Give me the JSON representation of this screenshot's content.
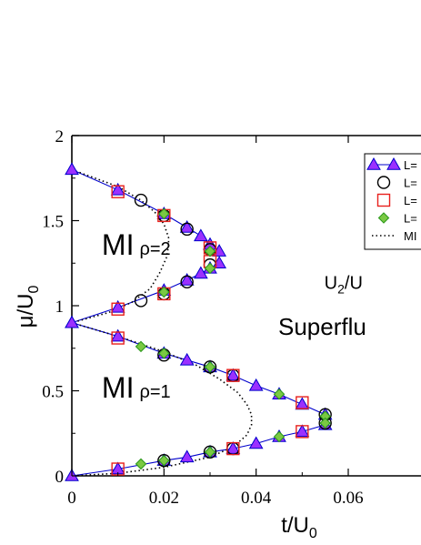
{
  "chart_data": {
    "type": "scatter",
    "title": "",
    "xlabel": {
      "base": "t/U",
      "sub": "0"
    },
    "ylabel": {
      "base": "μ/U",
      "sub": "0"
    },
    "xlim": [
      0,
      0.06
    ],
    "ylim": [
      0,
      2
    ],
    "x_ticks": [
      {
        "value": 0,
        "label": "0"
      },
      {
        "value": 0.02,
        "label": "0.02"
      },
      {
        "value": 0.04,
        "label": "0.04"
      },
      {
        "value": 0.06,
        "label": "0.06"
      }
    ],
    "y_ticks": [
      {
        "value": 0,
        "label": "0"
      },
      {
        "value": 0.5,
        "label": "0.5"
      },
      {
        "value": 1,
        "label": "1"
      },
      {
        "value": 1.5,
        "label": "1.5"
      },
      {
        "value": 2,
        "label": "2"
      }
    ],
    "legend_position": "top-right",
    "series": [
      {
        "name": "L=",
        "marker": "triangle",
        "color": "#9b30ff",
        "edge": "#0000cc",
        "line": true,
        "segments": [
          [
            [
              0,
              1.8
            ],
            [
              0.01,
              1.68
            ],
            [
              0.02,
              1.54
            ],
            [
              0.025,
              1.46
            ],
            [
              0.028,
              1.41
            ],
            [
              0.03,
              1.36
            ],
            [
              0.032,
              1.32
            ]
          ],
          [
            [
              0.032,
              1.25
            ],
            [
              0.03,
              1.22
            ],
            [
              0.028,
              1.19
            ],
            [
              0.025,
              1.15
            ],
            [
              0.02,
              1.09
            ],
            [
              0.01,
              0.99
            ],
            [
              0,
              0.9
            ]
          ],
          [
            [
              0,
              0.9
            ],
            [
              0.01,
              0.82
            ],
            [
              0.02,
              0.72
            ],
            [
              0.025,
              0.68
            ],
            [
              0.03,
              0.64
            ],
            [
              0.035,
              0.59
            ],
            [
              0.04,
              0.53
            ],
            [
              0.045,
              0.48
            ],
            [
              0.05,
              0.42
            ],
            [
              0.055,
              0.36
            ]
          ],
          [
            [
              0.055,
              0.3
            ],
            [
              0.05,
              0.26
            ],
            [
              0.045,
              0.23
            ],
            [
              0.04,
              0.19
            ],
            [
              0.035,
              0.16
            ],
            [
              0.03,
              0.14
            ],
            [
              0.025,
              0.11
            ],
            [
              0.02,
              0.09
            ],
            [
              0.01,
              0.04
            ],
            [
              0,
              0
            ]
          ]
        ]
      },
      {
        "name": "L=",
        "marker": "circle",
        "color": "#000000",
        "points": [
          [
            0.015,
            1.62
          ],
          [
            0.02,
            1.53
          ],
          [
            0.025,
            1.45
          ],
          [
            0.03,
            1.33
          ],
          [
            0.015,
            1.03
          ],
          [
            0.02,
            1.07
          ],
          [
            0.025,
            1.14
          ],
          [
            0.03,
            1.24
          ],
          [
            0.02,
            0.71
          ],
          [
            0.03,
            0.64
          ],
          [
            0.035,
            0.59
          ],
          [
            0.055,
            0.36
          ],
          [
            0.055,
            0.31
          ],
          [
            0.035,
            0.16
          ],
          [
            0.03,
            0.14
          ],
          [
            0.02,
            0.09
          ]
        ]
      },
      {
        "name": "L=",
        "marker": "square",
        "color": "#e8201c",
        "points": [
          [
            0.01,
            1.67
          ],
          [
            0.02,
            1.53
          ],
          [
            0.03,
            1.34
          ],
          [
            0.03,
            1.26
          ],
          [
            0.02,
            1.07
          ],
          [
            0.01,
            0.98
          ],
          [
            0.01,
            0.81
          ],
          [
            0.035,
            0.59
          ],
          [
            0.05,
            0.43
          ],
          [
            0.05,
            0.26
          ],
          [
            0.035,
            0.16
          ],
          [
            0.01,
            0.04
          ]
        ]
      },
      {
        "name": "L=",
        "marker": "diamond",
        "color": "#2e9a1e",
        "points": [
          [
            0.02,
            1.54
          ],
          [
            0.03,
            1.32
          ],
          [
            0.03,
            1.22
          ],
          [
            0.02,
            1.08
          ],
          [
            0.015,
            0.76
          ],
          [
            0.02,
            0.72
          ],
          [
            0.03,
            0.64
          ],
          [
            0.045,
            0.48
          ],
          [
            0.055,
            0.35
          ],
          [
            0.055,
            0.31
          ],
          [
            0.045,
            0.23
          ],
          [
            0.03,
            0.14
          ],
          [
            0.02,
            0.09
          ],
          [
            0.015,
            0.07
          ]
        ]
      },
      {
        "name": "MI",
        "marker": "none",
        "line_style": "dotted",
        "color": "#000000",
        "segments": [
          [
            [
              0,
              1.8
            ],
            [
              0.01,
              1.7
            ],
            [
              0.015,
              1.62
            ],
            [
              0.018,
              1.55
            ],
            [
              0.02,
              1.48
            ],
            [
              0.021,
              1.4
            ],
            [
              0.021,
              1.35
            ],
            [
              0.0205,
              1.28
            ],
            [
              0.019,
              1.19
            ],
            [
              0.017,
              1.1
            ],
            [
              0.013,
              1.02
            ],
            [
              0.008,
              0.96
            ],
            [
              0,
              0.9
            ]
          ],
          [
            [
              0,
              0.9
            ],
            [
              0.01,
              0.82
            ],
            [
              0.02,
              0.73
            ],
            [
              0.027,
              0.65
            ],
            [
              0.032,
              0.57
            ],
            [
              0.036,
              0.49
            ],
            [
              0.038,
              0.42
            ],
            [
              0.039,
              0.36
            ],
            [
              0.039,
              0.3
            ],
            [
              0.038,
              0.24
            ],
            [
              0.035,
              0.17
            ],
            [
              0.03,
              0.11
            ],
            [
              0.02,
              0.05
            ],
            [
              0.01,
              0.015
            ],
            [
              0,
              0
            ]
          ]
        ]
      }
    ],
    "annotations": [
      {
        "id": "mi2",
        "main": "MI",
        "sub": "ρ=2",
        "x": 0.0065,
        "y": 1.3
      },
      {
        "id": "mi1",
        "main": "MI",
        "sub": "ρ=1",
        "x": 0.0065,
        "y": 0.46
      },
      {
        "id": "u2",
        "main": "U",
        "sub": "2",
        "tail": "/U",
        "x": 0.0548,
        "y": 1.1
      },
      {
        "id": "sf",
        "text": "Superflu",
        "color": "#0000dd",
        "x": 0.0448,
        "y": 0.83
      }
    ]
  }
}
